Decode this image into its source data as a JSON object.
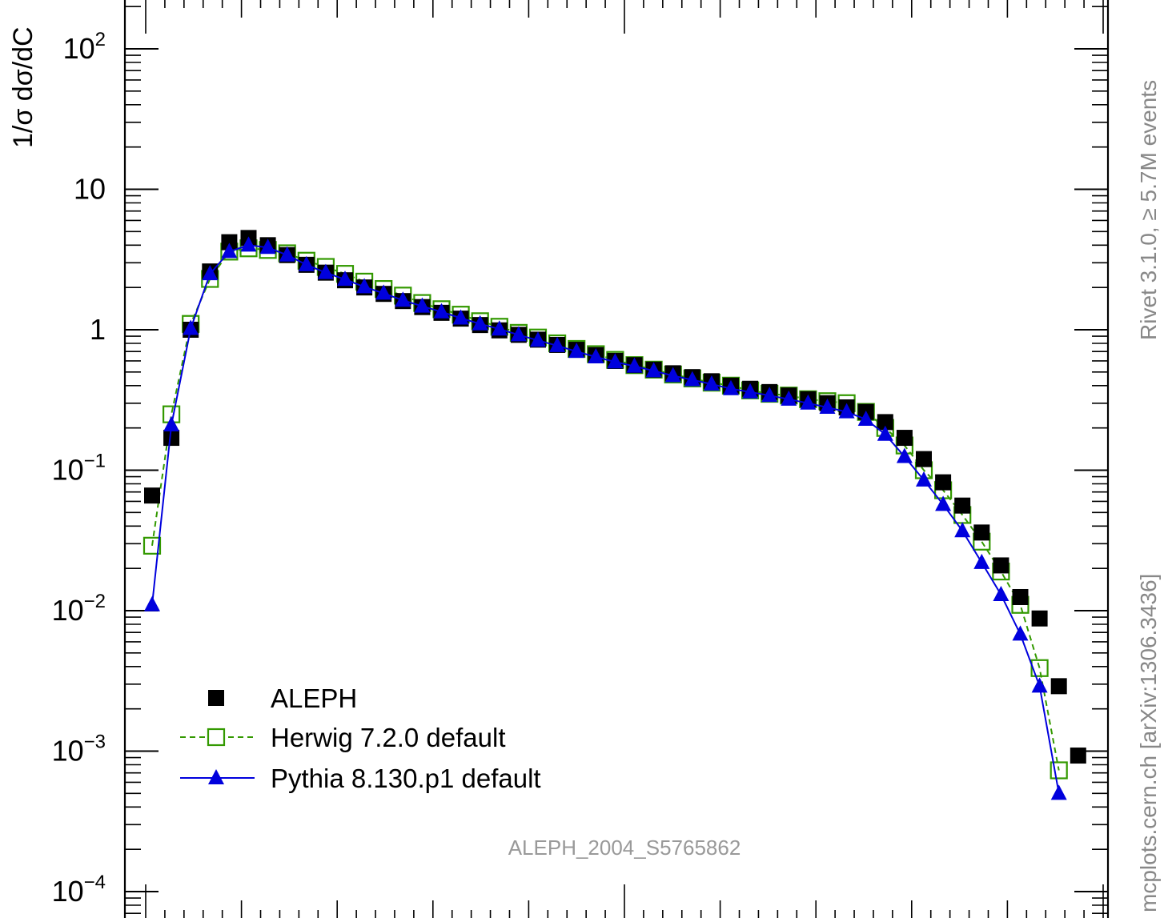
{
  "chart_data": {
    "type": "scatter",
    "title": "",
    "xlabel": "",
    "ylabel": "1/σ  dσ/dC",
    "yscale": "log",
    "ylim": [
      0.0001,
      200
    ],
    "xlim": [
      0,
      1
    ],
    "grid": false,
    "legend_position": "bottom-left",
    "y_tick_labels": [
      {
        "value": 0.0001,
        "base": "10",
        "exp": "−4"
      },
      {
        "value": 0.001,
        "base": "10",
        "exp": "−3"
      },
      {
        "value": 0.01,
        "base": "10",
        "exp": "−2"
      },
      {
        "value": 0.1,
        "base": "10",
        "exp": "−1"
      },
      {
        "value": 1,
        "base": "1",
        "exp": ""
      },
      {
        "value": 10,
        "base": "10",
        "exp": ""
      },
      {
        "value": 100,
        "base": "10",
        "exp": "2"
      }
    ],
    "x": [
      0.01,
      0.03,
      0.05,
      0.07,
      0.09,
      0.11,
      0.13,
      0.15,
      0.17,
      0.19,
      0.21,
      0.23,
      0.25,
      0.27,
      0.29,
      0.31,
      0.33,
      0.35,
      0.37,
      0.39,
      0.41,
      0.43,
      0.45,
      0.47,
      0.49,
      0.51,
      0.53,
      0.55,
      0.57,
      0.59,
      0.61,
      0.63,
      0.65,
      0.67,
      0.69,
      0.71,
      0.73,
      0.75,
      0.77,
      0.79,
      0.81,
      0.83,
      0.85,
      0.87,
      0.89,
      0.91,
      0.93,
      0.95,
      0.97,
      0.99
    ],
    "series": [
      {
        "name": "ALEPH",
        "color": "#000000",
        "marker": "filled-square",
        "line": "none",
        "values": [
          0.066,
          0.17,
          1.0,
          2.6,
          4.2,
          4.5,
          4.0,
          3.4,
          2.9,
          2.55,
          2.25,
          2.0,
          1.8,
          1.6,
          1.45,
          1.32,
          1.2,
          1.08,
          0.99,
          0.92,
          0.85,
          0.78,
          0.72,
          0.66,
          0.6,
          0.56,
          0.52,
          0.49,
          0.46,
          0.43,
          0.4,
          0.38,
          0.36,
          0.34,
          0.32,
          0.3,
          0.28,
          0.26,
          0.22,
          0.17,
          0.12,
          0.082,
          0.056,
          0.036,
          0.021,
          0.0125,
          0.0088,
          0.0029,
          0.00093,
          null
        ]
      },
      {
        "name": "Herwig 7.2.0 default",
        "color": "#339900",
        "marker": "open-square",
        "line": "dashed",
        "values": [
          0.029,
          0.25,
          1.1,
          2.3,
          3.6,
          3.8,
          3.7,
          3.5,
          3.1,
          2.8,
          2.5,
          2.2,
          1.95,
          1.75,
          1.55,
          1.4,
          1.28,
          1.15,
          1.05,
          0.95,
          0.88,
          0.8,
          0.73,
          0.67,
          0.61,
          0.56,
          0.52,
          0.48,
          0.45,
          0.42,
          0.4,
          0.37,
          0.35,
          0.34,
          0.32,
          0.31,
          0.3,
          0.26,
          0.2,
          0.15,
          0.1,
          0.072,
          0.048,
          0.031,
          0.019,
          0.011,
          0.0039,
          0.00073,
          null,
          null
        ]
      },
      {
        "name": "Pythia 8.130.p1 default",
        "color": "#0000dd",
        "marker": "filled-triangle",
        "line": "solid",
        "values": [
          0.011,
          0.21,
          1.02,
          2.5,
          3.6,
          4.0,
          3.85,
          3.4,
          2.9,
          2.55,
          2.28,
          2.02,
          1.82,
          1.62,
          1.47,
          1.34,
          1.21,
          1.1,
          1.01,
          0.92,
          0.84,
          0.77,
          0.7,
          0.64,
          0.59,
          0.55,
          0.51,
          0.47,
          0.44,
          0.41,
          0.38,
          0.36,
          0.34,
          0.32,
          0.3,
          0.28,
          0.26,
          0.23,
          0.18,
          0.125,
          0.085,
          0.057,
          0.037,
          0.022,
          0.013,
          0.0068,
          0.0029,
          0.0005,
          null,
          null
        ]
      }
    ],
    "annotations": {
      "analysis_id": "ALEPH_2004_S5765862",
      "rivet": "Rivet 3.1.0, ≥ 5.7M events",
      "source": "mcplots.cern.ch [arXiv:1306.3436]"
    }
  }
}
